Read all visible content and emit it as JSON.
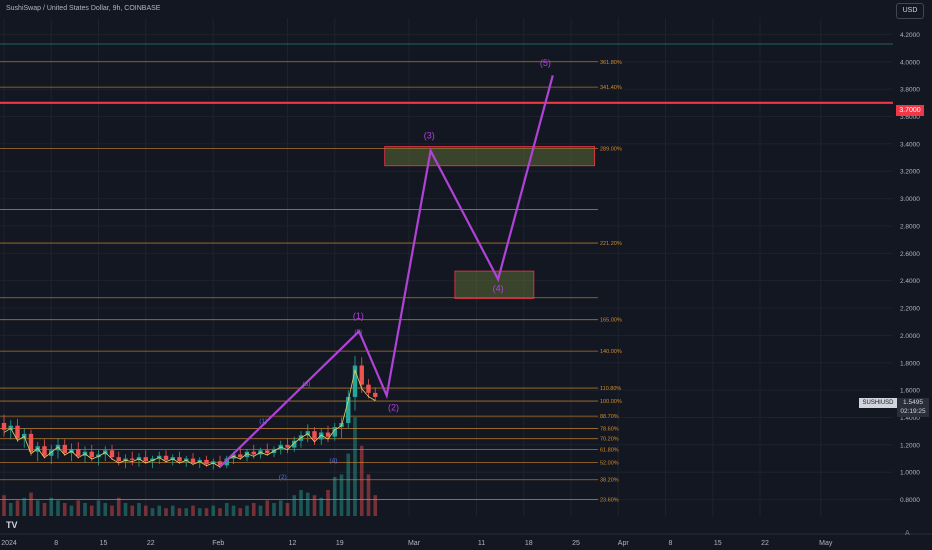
{
  "header": {
    "title": "SushiSwap / United States Dollar, 9h, COINBASE",
    "currency": "USD"
  },
  "price_tag": "3.7000",
  "symbol_tag": "SUSHIUSD",
  "last_tag": {
    "price": "1.5495",
    "timer": "02:19:25"
  },
  "logo": "TV",
  "auto_button": "A",
  "colors": {
    "background": "#131722",
    "wave": "#b042d8",
    "fib": "#d48c2a",
    "resistance": "#f23645",
    "zone": "#6b7a3a",
    "bull": "#26a69a",
    "bear": "#ef5350"
  },
  "chart_data": {
    "type": "line",
    "ylim": [
      0.68,
      4.32
    ],
    "y_ticks": [
      {
        "label": "4.2000",
        "v": 4.2
      },
      {
        "label": "4.0000",
        "v": 4.0
      },
      {
        "label": "3.8000",
        "v": 3.8
      },
      {
        "label": "3.6000",
        "v": 3.6
      },
      {
        "label": "3.4000",
        "v": 3.4
      },
      {
        "label": "3.2000",
        "v": 3.2
      },
      {
        "label": "3.0000",
        "v": 3.0
      },
      {
        "label": "2.8000",
        "v": 2.8
      },
      {
        "label": "2.6000",
        "v": 2.6
      },
      {
        "label": "2.4000",
        "v": 2.4
      },
      {
        "label": "2.2000",
        "v": 2.2
      },
      {
        "label": "2.0000",
        "v": 2.0
      },
      {
        "label": "1.8000",
        "v": 1.8
      },
      {
        "label": "1.6000",
        "v": 1.6
      },
      {
        "label": "1.4000",
        "v": 1.4
      },
      {
        "label": "1.2000",
        "v": 1.2
      },
      {
        "label": "1.0000",
        "v": 1.0
      },
      {
        "label": "0.8000",
        "v": 0.8
      }
    ],
    "x_ticks": [
      {
        "label": "2024",
        "d": 0
      },
      {
        "label": "8",
        "d": 7
      },
      {
        "label": "15",
        "d": 14
      },
      {
        "label": "22",
        "d": 21
      },
      {
        "label": "Feb",
        "d": 31
      },
      {
        "label": "12",
        "d": 42
      },
      {
        "label": "19",
        "d": 49
      },
      {
        "label": "Mar",
        "d": 60
      },
      {
        "label": "11",
        "d": 70
      },
      {
        "label": "18",
        "d": 77
      },
      {
        "label": "25",
        "d": 84
      },
      {
        "label": "Apr",
        "d": 91
      },
      {
        "label": "8",
        "d": 98
      },
      {
        "label": "15",
        "d": 105
      },
      {
        "label": "22",
        "d": 112
      },
      {
        "label": "May",
        "d": 121
      }
    ],
    "fib_levels": [
      {
        "label": "361.80%",
        "v": 4.0
      },
      {
        "label": "341.40%",
        "v": 3.815
      },
      {
        "label": "289.00%",
        "v": 3.365
      },
      {
        "label": "",
        "v": 2.92
      },
      {
        "label": "221.20%",
        "v": 2.675
      },
      {
        "label": "",
        "v": 2.275
      },
      {
        "label": "165.00%",
        "v": 2.115
      },
      {
        "label": "140.00%",
        "v": 1.885
      },
      {
        "label": "110.80%",
        "v": 1.615
      },
      {
        "label": "100.00%",
        "v": 1.52
      },
      {
        "label": "88.70%",
        "v": 1.41
      },
      {
        "label": "78.60%",
        "v": 1.32
      },
      {
        "label": "70.20%",
        "v": 1.245
      },
      {
        "label": "61.80%",
        "v": 1.165
      },
      {
        "label": "52.00%",
        "v": 1.07
      },
      {
        "label": "38.20%",
        "v": 0.945
      },
      {
        "label": "23.60%",
        "v": 0.8
      }
    ],
    "resistance": 3.7,
    "top_line": 4.13,
    "zones": [
      {
        "d0": 56.4,
        "d1": 87.5,
        "v0": 3.38,
        "v1": 3.24
      },
      {
        "d0": 66.8,
        "d1": 78.5,
        "v0": 2.47,
        "v1": 2.27
      }
    ],
    "wave_path": [
      {
        "d": 32,
        "v": 1.04
      },
      {
        "d": 52.6,
        "v": 2.03
      },
      {
        "d": 56.7,
        "v": 1.56
      },
      {
        "d": 63.2,
        "v": 3.35
      },
      {
        "d": 73.2,
        "v": 2.41
      },
      {
        "d": 81.3,
        "v": 3.9
      }
    ],
    "wave_labels": [
      {
        "label": "(1)",
        "d": 52.5,
        "v": 2.12
      },
      {
        "label": "(2)",
        "d": 57.7,
        "v": 1.45
      },
      {
        "label": "(3)",
        "d": 63.0,
        "v": 3.44
      },
      {
        "label": "(4)",
        "d": 73.2,
        "v": 2.32
      },
      {
        "label": "(5)",
        "d": 80.2,
        "v": 3.97
      }
    ],
    "minor_labels": [
      {
        "label": "(1)",
        "d": 38.4,
        "v": 1.36
      },
      {
        "label": "(2)",
        "d": 41.3,
        "v": 0.95
      },
      {
        "label": "(3)",
        "d": 44.8,
        "v": 1.63
      },
      {
        "label": "(4)",
        "d": 48.8,
        "v": 1.07
      },
      {
        "label": "(5)",
        "d": 52.5,
        "v": 2.01
      }
    ],
    "price": [
      {
        "d": 0,
        "o": 1.36,
        "h": 1.42,
        "l": 1.26,
        "c": 1.31
      },
      {
        "d": 1,
        "o": 1.31,
        "h": 1.38,
        "l": 1.24,
        "c": 1.34
      },
      {
        "d": 2,
        "o": 1.34,
        "h": 1.39,
        "l": 1.22,
        "c": 1.25
      },
      {
        "d": 3,
        "o": 1.25,
        "h": 1.32,
        "l": 1.18,
        "c": 1.28
      },
      {
        "d": 4,
        "o": 1.28,
        "h": 1.31,
        "l": 1.12,
        "c": 1.15
      },
      {
        "d": 5,
        "o": 1.15,
        "h": 1.22,
        "l": 1.08,
        "c": 1.19
      },
      {
        "d": 6,
        "o": 1.19,
        "h": 1.24,
        "l": 1.1,
        "c": 1.12
      },
      {
        "d": 7,
        "o": 1.12,
        "h": 1.2,
        "l": 1.06,
        "c": 1.16
      },
      {
        "d": 8,
        "o": 1.16,
        "h": 1.25,
        "l": 1.1,
        "c": 1.2
      },
      {
        "d": 9,
        "o": 1.2,
        "h": 1.24,
        "l": 1.12,
        "c": 1.14
      },
      {
        "d": 10,
        "o": 1.14,
        "h": 1.21,
        "l": 1.08,
        "c": 1.17
      },
      {
        "d": 11,
        "o": 1.17,
        "h": 1.22,
        "l": 1.1,
        "c": 1.12
      },
      {
        "d": 12,
        "o": 1.12,
        "h": 1.19,
        "l": 1.07,
        "c": 1.15
      },
      {
        "d": 13,
        "o": 1.15,
        "h": 1.2,
        "l": 1.08,
        "c": 1.11
      },
      {
        "d": 14,
        "o": 1.11,
        "h": 1.16,
        "l": 1.05,
        "c": 1.13
      },
      {
        "d": 15,
        "o": 1.13,
        "h": 1.19,
        "l": 1.08,
        "c": 1.16
      },
      {
        "d": 16,
        "o": 1.16,
        "h": 1.2,
        "l": 1.09,
        "c": 1.11
      },
      {
        "d": 17,
        "o": 1.11,
        "h": 1.15,
        "l": 1.05,
        "c": 1.08
      },
      {
        "d": 18,
        "o": 1.08,
        "h": 1.13,
        "l": 1.03,
        "c": 1.1
      },
      {
        "d": 19,
        "o": 1.1,
        "h": 1.15,
        "l": 1.05,
        "c": 1.09
      },
      {
        "d": 20,
        "o": 1.09,
        "h": 1.14,
        "l": 1.04,
        "c": 1.11
      },
      {
        "d": 21,
        "o": 1.11,
        "h": 1.16,
        "l": 1.06,
        "c": 1.08
      },
      {
        "d": 22,
        "o": 1.08,
        "h": 1.12,
        "l": 1.03,
        "c": 1.1
      },
      {
        "d": 23,
        "o": 1.1,
        "h": 1.15,
        "l": 1.06,
        "c": 1.12
      },
      {
        "d": 24,
        "o": 1.12,
        "h": 1.16,
        "l": 1.07,
        "c": 1.09
      },
      {
        "d": 25,
        "o": 1.09,
        "h": 1.13,
        "l": 1.05,
        "c": 1.11
      },
      {
        "d": 26,
        "o": 1.11,
        "h": 1.15,
        "l": 1.06,
        "c": 1.08
      },
      {
        "d": 27,
        "o": 1.08,
        "h": 1.12,
        "l": 1.04,
        "c": 1.1
      },
      {
        "d": 28,
        "o": 1.1,
        "h": 1.14,
        "l": 1.05,
        "c": 1.07
      },
      {
        "d": 29,
        "o": 1.07,
        "h": 1.11,
        "l": 1.03,
        "c": 1.09
      },
      {
        "d": 30,
        "o": 1.09,
        "h": 1.12,
        "l": 1.04,
        "c": 1.06
      },
      {
        "d": 31,
        "o": 1.06,
        "h": 1.1,
        "l": 1.02,
        "c": 1.08
      },
      {
        "d": 32,
        "o": 1.08,
        "h": 1.12,
        "l": 1.03,
        "c": 1.05
      },
      {
        "d": 33,
        "o": 1.05,
        "h": 1.12,
        "l": 1.03,
        "c": 1.1
      },
      {
        "d": 34,
        "o": 1.1,
        "h": 1.15,
        "l": 1.06,
        "c": 1.13
      },
      {
        "d": 35,
        "o": 1.13,
        "h": 1.18,
        "l": 1.09,
        "c": 1.11
      },
      {
        "d": 36,
        "o": 1.11,
        "h": 1.17,
        "l": 1.08,
        "c": 1.15
      },
      {
        "d": 37,
        "o": 1.15,
        "h": 1.2,
        "l": 1.1,
        "c": 1.13
      },
      {
        "d": 38,
        "o": 1.13,
        "h": 1.18,
        "l": 1.1,
        "c": 1.16
      },
      {
        "d": 39,
        "o": 1.16,
        "h": 1.21,
        "l": 1.12,
        "c": 1.14
      },
      {
        "d": 40,
        "o": 1.14,
        "h": 1.19,
        "l": 1.11,
        "c": 1.17
      },
      {
        "d": 41,
        "o": 1.17,
        "h": 1.23,
        "l": 1.13,
        "c": 1.2
      },
      {
        "d": 42,
        "o": 1.2,
        "h": 1.25,
        "l": 1.14,
        "c": 1.18
      },
      {
        "d": 43,
        "o": 1.18,
        "h": 1.26,
        "l": 1.15,
        "c": 1.23
      },
      {
        "d": 44,
        "o": 1.23,
        "h": 1.3,
        "l": 1.18,
        "c": 1.27
      },
      {
        "d": 45,
        "o": 1.27,
        "h": 1.35,
        "l": 1.22,
        "c": 1.3
      },
      {
        "d": 46,
        "o": 1.3,
        "h": 1.33,
        "l": 1.2,
        "c": 1.24
      },
      {
        "d": 47,
        "o": 1.24,
        "h": 1.32,
        "l": 1.2,
        "c": 1.29
      },
      {
        "d": 48,
        "o": 1.29,
        "h": 1.34,
        "l": 1.22,
        "c": 1.26
      },
      {
        "d": 49,
        "o": 1.26,
        "h": 1.36,
        "l": 1.23,
        "c": 1.33
      },
      {
        "d": 50,
        "o": 1.33,
        "h": 1.4,
        "l": 1.25,
        "c": 1.36
      },
      {
        "d": 51,
        "o": 1.36,
        "h": 1.6,
        "l": 1.32,
        "c": 1.55
      },
      {
        "d": 52,
        "o": 1.55,
        "h": 1.85,
        "l": 1.45,
        "c": 1.78
      },
      {
        "d": 53,
        "o": 1.78,
        "h": 1.84,
        "l": 1.58,
        "c": 1.64
      },
      {
        "d": 54,
        "o": 1.64,
        "h": 1.68,
        "l": 1.54,
        "c": 1.58
      },
      {
        "d": 55,
        "o": 1.58,
        "h": 1.62,
        "l": 1.52,
        "c": 1.55
      }
    ],
    "volume": [
      0.8,
      0.5,
      0.6,
      0.7,
      0.9,
      0.6,
      0.5,
      0.7,
      0.6,
      0.5,
      0.4,
      0.6,
      0.5,
      0.4,
      0.6,
      0.5,
      0.4,
      0.7,
      0.5,
      0.4,
      0.5,
      0.4,
      0.3,
      0.4,
      0.3,
      0.4,
      0.3,
      0.3,
      0.4,
      0.3,
      0.3,
      0.4,
      0.3,
      0.5,
      0.4,
      0.3,
      0.4,
      0.5,
      0.4,
      0.6,
      0.5,
      0.6,
      0.5,
      0.8,
      1.0,
      0.9,
      0.8,
      0.7,
      1.0,
      1.5,
      1.6,
      2.4,
      3.8,
      2.7,
      1.6,
      0.8
    ]
  }
}
